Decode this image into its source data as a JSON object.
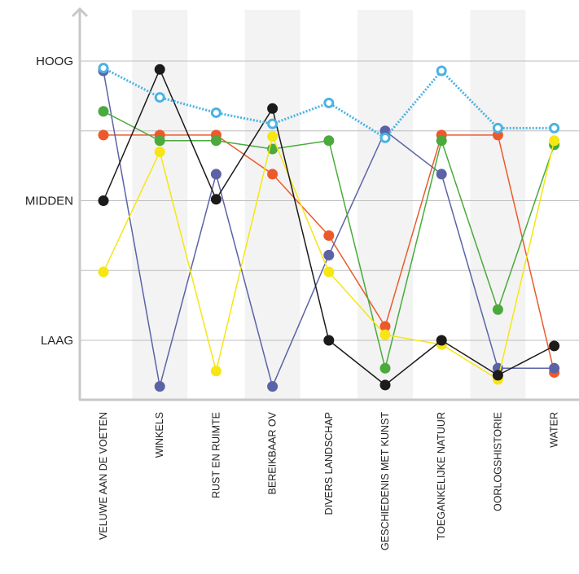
{
  "chart_data": {
    "type": "line",
    "title": "",
    "xlabel": "",
    "ylabel": "",
    "categories": [
      "VELUWE AAN DE VOETEN",
      "WINKELS",
      "RUST EN RUIMTE",
      "BEREIKBAAR OV",
      "DIVERS LANDSCHAP",
      "GESCHIEDENIS MET  KUNST",
      "TOEGANKELIJKE NATUUR",
      "OORLOGSHISTORIE",
      "WATER"
    ],
    "y_levels": [
      {
        "label": "LAAG",
        "value": 1
      },
      {
        "label": "MIDDEN",
        "value": 2
      },
      {
        "label": "HOOG",
        "value": 3
      }
    ],
    "ylim": [
      0.65,
      3.37
    ],
    "grid": true,
    "legend": "none",
    "series": [
      {
        "color": "#ec5a2b",
        "marker": "filled",
        "values": [
          2.47,
          2.47,
          2.47,
          2.19,
          1.75,
          1.1,
          2.47,
          2.47,
          0.77
        ]
      },
      {
        "color": "#5b63a6",
        "marker": "filled",
        "values": [
          2.93,
          0.67,
          2.19,
          0.67,
          1.61,
          2.5,
          2.19,
          0.8,
          0.8
        ]
      },
      {
        "color": "#4aaa3c",
        "marker": "filled",
        "values": [
          2.64,
          2.43,
          2.43,
          2.37,
          2.43,
          0.8,
          2.43,
          1.22,
          2.4
        ]
      },
      {
        "color": "#f6e614",
        "marker": "filled",
        "values": [
          1.49,
          2.35,
          0.78,
          2.46,
          1.49,
          1.04,
          0.97,
          0.72,
          2.43
        ]
      },
      {
        "color": "#1d1a1a",
        "marker": "filled",
        "values": [
          2.0,
          2.94,
          2.01,
          2.66,
          1.0,
          0.68,
          1.0,
          0.75,
          0.96
        ]
      },
      {
        "color": "#4ab3e3",
        "marker": "ring",
        "dotted": true,
        "values": [
          2.95,
          2.74,
          2.63,
          2.55,
          2.7,
          2.45,
          2.93,
          2.52,
          2.52
        ]
      }
    ]
  }
}
